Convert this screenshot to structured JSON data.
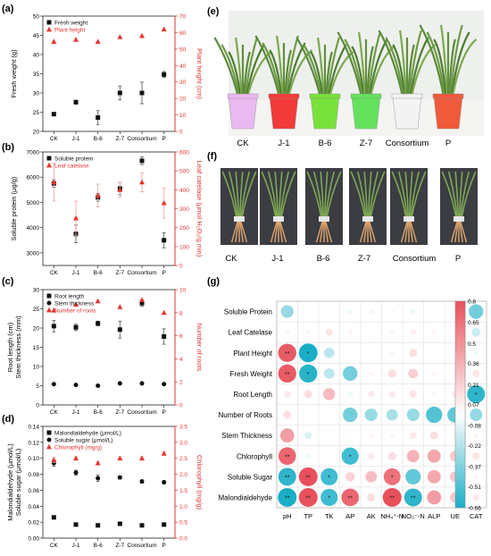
{
  "figure": {
    "panel_labels": [
      "(a)",
      "(b)",
      "(c)",
      "(d)",
      "(e)",
      "(f)",
      "(g)"
    ],
    "photo_e": {
      "labels": [
        "CK",
        "J-1",
        "B-6",
        "Z-7",
        "Consortium",
        "P"
      ],
      "pot_colors": [
        "#e9b9f0",
        "#f23a3a",
        "#78e23b",
        "#64e25d",
        "#f3f3f3",
        "#f05a3b"
      ]
    },
    "photo_f": {
      "labels": [
        "CK",
        "J-1",
        "B-6",
        "Z-7",
        "Consortium",
        "P"
      ]
    }
  },
  "chart_data": [
    {
      "type": "scatter",
      "panel": "(a)",
      "categories": [
        "CK",
        "J-1",
        "B-6",
        "Z-7",
        "Consortium",
        "P"
      ],
      "ylabel": "Fresh weight (g)",
      "y2label": "Plant height (cm)",
      "ylim": [
        20,
        50
      ],
      "yticks": [
        20,
        25,
        30,
        35,
        40,
        45,
        50
      ],
      "y2lim": [
        0,
        70
      ],
      "y2ticks": [
        0,
        10,
        20,
        30,
        40,
        50,
        60,
        70
      ],
      "legend": "top-left",
      "series": [
        {
          "name": "Fresh weight",
          "axis": "left",
          "marker": "square",
          "color": "#111111",
          "values": [
            24.5,
            27.6,
            23.6,
            30.0,
            30.0,
            34.8
          ],
          "errors": [
            0.3,
            0.5,
            1.8,
            1.8,
            2.8,
            0.8
          ]
        },
        {
          "name": "Plant height",
          "axis": "right",
          "marker": "triangle",
          "color": "#e8332f",
          "values": [
            54.5,
            55.7,
            54.5,
            57.3,
            58.0,
            62.0
          ],
          "errors": [
            0,
            0,
            0,
            0,
            0,
            0
          ]
        }
      ]
    },
    {
      "type": "scatter",
      "panel": "(b)",
      "categories": [
        "CK",
        "J-1",
        "B-6",
        "Z-7",
        "Consortium",
        "P"
      ],
      "ylabel": "Soluble protein (μg/g)",
      "y2label": "Leaf catelase (μmol H₂O₂/g.min)",
      "ylim": [
        2500,
        7000
      ],
      "yticks": [
        3000,
        4000,
        5000,
        6000,
        7000
      ],
      "y2lim": [
        0,
        600
      ],
      "y2ticks": [
        0,
        100,
        200,
        300,
        400,
        500,
        600
      ],
      "legend": "top-left",
      "series": [
        {
          "name": "Soluble protein",
          "axis": "left",
          "marker": "square",
          "color": "#111111",
          "values": [
            5750,
            3750,
            5200,
            5550,
            6650,
            3500
          ],
          "errors": [
            150,
            350,
            150,
            250,
            150,
            300
          ]
        },
        {
          "name": "Leaf catelase",
          "axis": "right",
          "marker": "triangle",
          "color": "#e8332f",
          "values": [
            440,
            250,
            370,
            400,
            440,
            330
          ],
          "errors": [
            100,
            90,
            60,
            40,
            50,
            80
          ]
        }
      ]
    },
    {
      "type": "scatter",
      "panel": "(c)",
      "categories": [
        "CK",
        "J-1",
        "B-6",
        "Z-7",
        "Consortium",
        "P"
      ],
      "ylabel": "Root length (cm)",
      "ylabel2": "Stem thickness (mm)",
      "y2label": "Number of roots",
      "ylim": [
        0,
        30
      ],
      "yticks": [
        0,
        5,
        10,
        15,
        20,
        25,
        30
      ],
      "y2lim": [
        0,
        10
      ],
      "y2ticks": [
        0,
        2,
        4,
        6,
        8,
        10
      ],
      "legend": "top-left",
      "series": [
        {
          "name": "Root length",
          "axis": "left",
          "marker": "square",
          "color": "#111111",
          "values": [
            20.5,
            20.2,
            21.2,
            19.6,
            26.5,
            17.8
          ],
          "errors": [
            1.5,
            0.8,
            0.6,
            2.2,
            0.8,
            2.0
          ]
        },
        {
          "name": "Stem thickness",
          "axis": "left",
          "marker": "circle",
          "color": "#111111",
          "values": [
            5.4,
            5.2,
            5.0,
            5.6,
            5.6,
            5.4
          ],
          "errors": [
            0.2,
            0.2,
            0.2,
            0.2,
            0.2,
            0.2
          ]
        },
        {
          "name": "Number of roots",
          "axis": "right",
          "marker": "triangle",
          "color": "#e8332f",
          "values": [
            8.2,
            8.7,
            9.0,
            8.5,
            9.1,
            8.0
          ],
          "errors": [
            0,
            0,
            0,
            0,
            0,
            0
          ]
        }
      ]
    },
    {
      "type": "scatter",
      "panel": "(d)",
      "categories": [
        "CK",
        "J-1",
        "B-6",
        "Z-7",
        "Consortium",
        "P"
      ],
      "ylabel": "Malondialdehyde  (μmol/L)",
      "ylabel2": "Soluble sugar  (μmol/L)",
      "y2label": "Chlorophyll (mg/g)",
      "ylim": [
        0.0,
        0.14
      ],
      "yticks": [
        0.0,
        0.02,
        0.04,
        0.06,
        0.08,
        0.1,
        0.12,
        0.14
      ],
      "ytick_labels": [
        "0.00",
        "0.02",
        "0.04",
        "0.06",
        "0.08",
        "0.10",
        "0.12",
        "0.14"
      ],
      "y2lim": [
        0.0,
        3.5
      ],
      "y2ticks": [
        0.0,
        0.5,
        1.0,
        1.5,
        2.0,
        2.5,
        3.0,
        3.5
      ],
      "y2tick_labels": [
        "0.0",
        "0.5",
        "1.0",
        "1.5",
        "2.0",
        "2.5",
        "3.0",
        "3.5"
      ],
      "legend": "top-left",
      "series": [
        {
          "name": "Malondialdehyde  (μmol/L)",
          "axis": "left",
          "marker": "square",
          "color": "#111111",
          "values": [
            0.026,
            0.017,
            0.016,
            0.018,
            0.016,
            0.017
          ],
          "errors": [
            0.001,
            0.001,
            0.001,
            0.001,
            0.001,
            0.001
          ]
        },
        {
          "name": "Soluble sugar  (μmol/L)",
          "axis": "left",
          "marker": "circle",
          "color": "#111111",
          "values": [
            0.094,
            0.082,
            0.075,
            0.076,
            0.071,
            0.07
          ],
          "errors": [
            0.004,
            0.003,
            0.004,
            0.002,
            0.002,
            0.002
          ]
        },
        {
          "name": "Chlorophyll (mg/g)",
          "axis": "right",
          "marker": "triangle",
          "color": "#e8332f",
          "values": [
            2.45,
            2.5,
            2.35,
            2.5,
            2.5,
            2.65
          ],
          "errors": [
            0.08,
            0.05,
            0.05,
            0.05,
            0.05,
            0.05
          ]
        }
      ]
    },
    {
      "type": "heatmap",
      "panel": "(g)",
      "rows": [
        "Soluble Protein",
        "Leaf Catelase",
        "Plant Height",
        "Fresh Weight",
        "Root Length",
        "Number of Roots",
        "Stem Thickness",
        "Chlorophyll",
        "Soluble Sugar",
        "Malondialdehyde"
      ],
      "columns": [
        "pH",
        "TP",
        "TK",
        "AP",
        "AK",
        "NH₄⁺-N",
        "NO₃⁻-N",
        "ALP",
        "UE",
        "CAT"
      ],
      "values": [
        [
          -0.3,
          -0.02,
          0.02,
          -0.05,
          0.05,
          0.04,
          -0.05,
          0.0,
          -0.02,
          -0.4
        ],
        [
          0.05,
          0.05,
          0.12,
          0.05,
          0.0,
          0.05,
          0.08,
          0.05,
          0.02,
          -0.15
        ],
        [
          0.75,
          -0.66,
          -0.2,
          0.0,
          0.0,
          0.05,
          0.15,
          0.02,
          0.02,
          -0.05
        ],
        [
          0.75,
          -0.62,
          -0.2,
          -0.4,
          0.05,
          0.15,
          0.22,
          0.05,
          0.05,
          0.12
        ],
        [
          0.1,
          0.15,
          0.32,
          -0.05,
          0.1,
          0.1,
          0.12,
          0.05,
          0.1,
          -0.6
        ],
        [
          0.15,
          0.0,
          0.0,
          -0.4,
          -0.3,
          -0.25,
          -0.3,
          -0.5,
          -0.45,
          -0.3
        ],
        [
          0.45,
          -0.1,
          0.0,
          -0.02,
          0.05,
          0.05,
          0.1,
          0.15,
          0.05,
          0.05
        ],
        [
          0.7,
          -0.05,
          0.0,
          -0.55,
          0.1,
          0.15,
          0.35,
          0.4,
          0.25,
          0.12
        ],
        [
          -0.6,
          0.8,
          -0.55,
          0.2,
          0.3,
          0.65,
          -0.45,
          0.4,
          0.25,
          0.05
        ],
        [
          -0.66,
          0.8,
          -0.55,
          0.7,
          0.15,
          0.8,
          -0.6,
          0.45,
          0.25,
          0.1
        ]
      ],
      "stars": [
        [
          "",
          "",
          "",
          "",
          "",
          "",
          "",
          "",
          "",
          ""
        ],
        [
          "",
          "",
          "",
          "",
          "",
          "",
          "",
          "",
          "",
          ""
        ],
        [
          "**",
          "*",
          "",
          "",
          "",
          "",
          "",
          "",
          "",
          ""
        ],
        [
          "**",
          "*",
          "",
          "",
          "",
          "",
          "",
          "",
          "",
          ""
        ],
        [
          "",
          "",
          "",
          "",
          "",
          "",
          "",
          "",
          "",
          "*"
        ],
        [
          "",
          "",
          "",
          "",
          "",
          "",
          "",
          "",
          "",
          ""
        ],
        [
          "",
          "",
          "",
          "",
          "",
          "",
          "",
          "",
          "",
          ""
        ],
        [
          "**",
          "",
          "",
          "*",
          "",
          "",
          "",
          "",
          "",
          ""
        ],
        [
          "**",
          "**",
          "*",
          "",
          "",
          "*",
          "",
          "",
          "",
          ""
        ],
        [
          "**",
          "**",
          "*",
          "**",
          "",
          "**",
          "**",
          "",
          "",
          ""
        ]
      ],
      "colorbar": {
        "range": [
          -0.66,
          0.8
        ],
        "ticks": [
          0.8,
          0.65,
          0.5,
          0.36,
          0.21,
          0.07,
          -0.08,
          -0.22,
          -0.37,
          -0.51,
          -0.66
        ],
        "tick_labels": [
          "0.8",
          "0.65",
          "0.5",
          "0.36",
          "0.21",
          "0.07",
          "-0.08",
          "-0.22",
          "-0.37",
          "-0.51",
          "-0.66"
        ],
        "low_color": "#1aaec6",
        "high_color": "#e8505b"
      }
    }
  ]
}
